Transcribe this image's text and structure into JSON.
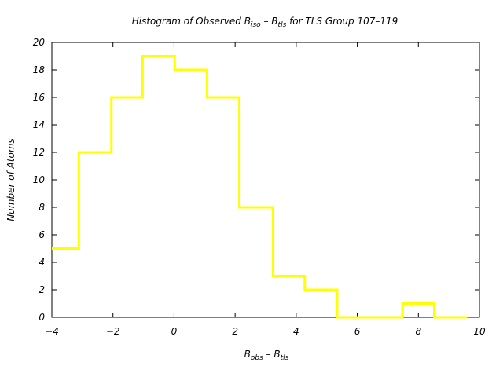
{
  "chart_data": {
    "type": "histogram",
    "title": {
      "prefix": "Histogram of Observed B",
      "sub1": "iso",
      "mid": " – B",
      "sub2": "tls",
      "suffix": " for TLS Group 107–119"
    },
    "xlabel": {
      "main1": "B",
      "sub1": "obs",
      "mid": " – B",
      "sub2": "tls"
    },
    "ylabel": "Number of Atoms",
    "xlim": [
      -4,
      10
    ],
    "ylim": [
      0,
      20
    ],
    "xticks": [
      {
        "value": -4,
        "label": "−4"
      },
      {
        "value": -2,
        "label": "−2"
      },
      {
        "value": 0,
        "label": "0"
      },
      {
        "value": 2,
        "label": "2"
      },
      {
        "value": 4,
        "label": "4"
      },
      {
        "value": 6,
        "label": "6"
      },
      {
        "value": 8,
        "label": "8"
      },
      {
        "value": 10,
        "label": "10"
      }
    ],
    "yticks": [
      {
        "value": 0,
        "label": "0"
      },
      {
        "value": 2,
        "label": "2"
      },
      {
        "value": 4,
        "label": "4"
      },
      {
        "value": 6,
        "label": "6"
      },
      {
        "value": 8,
        "label": "8"
      },
      {
        "value": 10,
        "label": "10"
      },
      {
        "value": 12,
        "label": "12"
      },
      {
        "value": 14,
        "label": "14"
      },
      {
        "value": 16,
        "label": "16"
      },
      {
        "value": 18,
        "label": "18"
      },
      {
        "value": 20,
        "label": "20"
      }
    ],
    "bin_edges": [
      -4.0,
      -3.12,
      -2.05,
      -1.03,
      0.02,
      1.08,
      2.14,
      3.24,
      4.28,
      5.34,
      6.42,
      7.48,
      8.52,
      9.6
    ],
    "counts": [
      5,
      12,
      16,
      19,
      18,
      16,
      8,
      3,
      2,
      0,
      0,
      1,
      0
    ],
    "grid": false,
    "legend": "none",
    "line_color": "#ffff00",
    "axis_color": "#000000",
    "background": "#ffffff"
  }
}
